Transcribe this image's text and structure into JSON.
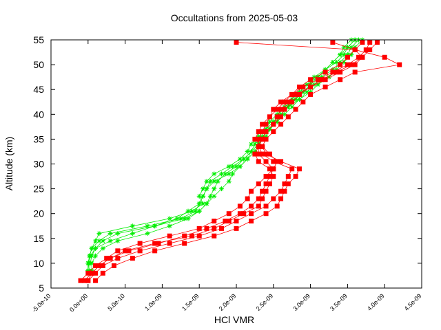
{
  "chart_data": {
    "type": "line",
    "title": "Occultations from 2025-05-03",
    "xlabel": "HCl VMR",
    "ylabel": "Altitude (km)",
    "xlim": [
      -5e-10,
      4.5e-09
    ],
    "ylim": [
      5,
      55
    ],
    "x_ticks": [
      -5e-10,
      0,
      5e-10,
      1e-09,
      1.5e-09,
      2e-09,
      2.5e-09,
      3e-09,
      3.5e-09,
      4e-09,
      4.5e-09
    ],
    "x_tick_labels": [
      "-5.0e-10",
      "0.0e+00",
      "5.0e-10",
      "1.0e-09",
      "1.5e-09",
      "2.0e-09",
      "2.5e-09",
      "3.0e-09",
      "3.5e-09",
      "4.0e-09",
      "4.5e-09"
    ],
    "y_ticks": [
      5,
      10,
      15,
      20,
      25,
      30,
      35,
      40,
      45,
      50,
      55
    ],
    "y_tick_labels": [
      "5",
      "10",
      "15",
      "20",
      "25",
      "30",
      "35",
      "40",
      "45",
      "50",
      "55"
    ],
    "grid": false,
    "legend": "none",
    "series": [
      {
        "marker": "star",
        "color": "#00ee00",
        "profiles": [
          {
            "y": [
              8.5,
              10,
              11.5,
              13,
              14.5,
              16,
              17.5,
              19,
              20.5,
              22,
              23.5,
              25,
              26.5,
              28,
              29.5,
              31,
              32.5,
              34,
              35.5,
              37,
              38.5,
              40,
              41.5,
              43,
              44.5,
              46,
              47.5,
              49,
              50.5,
              52,
              53.5,
              55
            ],
            "x": [
              0.0,
              0.0,
              2e-11,
              5e-11,
              1e-10,
              1.5e-10,
              6e-10,
              1.1e-09,
              1.4e-09,
              1.55e-09,
              1.5e-09,
              1.55e-09,
              1.6e-09,
              1.7e-09,
              1.9e-09,
              2.05e-09,
              2.15e-09,
              2.2e-09,
              2.3e-09,
              2.4e-09,
              2.5e-09,
              2.6e-09,
              2.7e-09,
              2.8e-09,
              2.9e-09,
              3e-09,
              3.1e-09,
              3.2e-09,
              3.3e-09,
              3.4e-09,
              3.5e-09,
              3.6e-09
            ]
          },
          {
            "y": [
              8.5,
              10,
              11.5,
              13,
              14.5,
              16,
              17.5,
              19,
              20.5,
              22,
              23.5,
              25,
              26.5,
              28,
              29.5,
              31,
              32.5,
              34,
              35.5,
              37,
              38.5,
              40,
              41.5,
              43,
              44.5,
              46,
              47.5,
              49,
              50.5,
              52,
              53.5,
              55
            ],
            "x": [
              2e-11,
              3e-11,
              5e-11,
              1e-10,
              2e-10,
              4e-10,
              9e-10,
              1.3e-09,
              1.5e-09,
              1.6e-09,
              1.65e-09,
              1.7e-09,
              1.75e-09,
              1.85e-09,
              2e-09,
              2.1e-09,
              2.2e-09,
              2.3e-09,
              2.35e-09,
              2.45e-09,
              2.55e-09,
              2.65e-09,
              2.75e-09,
              2.85e-09,
              3e-09,
              3.1e-09,
              3.25e-09,
              3.35e-09,
              3.45e-09,
              3.55e-09,
              3.6e-09,
              3.7e-09
            ]
          },
          {
            "y": [
              8.5,
              10,
              11.5,
              13,
              14.5,
              16,
              17.5,
              19,
              20.5,
              22,
              23.5,
              25,
              26.5,
              28,
              29.5,
              31,
              32.5,
              34,
              35.5,
              37,
              38.5,
              40,
              41.5,
              43,
              44.5,
              46,
              47.5,
              49,
              50.5,
              52,
              53.5,
              55
            ],
            "x": [
              0.0,
              1e-11,
              3e-11,
              1e-10,
              3e-10,
              6e-10,
              9e-10,
              1.2e-09,
              1.35e-09,
              1.5e-09,
              1.55e-09,
              1.6e-09,
              1.65e-09,
              1.8e-09,
              1.95e-09,
              2.1e-09,
              2.2e-09,
              2.25e-09,
              2.3e-09,
              2.4e-09,
              2.45e-09,
              2.55e-09,
              2.65e-09,
              2.8e-09,
              2.9e-09,
              3e-09,
              3.05e-09,
              3.2e-09,
              3.3e-09,
              3.4e-09,
              3.45e-09,
              3.55e-09
            ]
          },
          {
            "y": [
              8.5,
              10,
              11.5,
              13,
              14.5,
              16,
              17.5,
              19,
              20.5,
              22,
              23.5,
              25,
              26.5,
              28,
              29.5,
              31,
              32.5,
              34,
              35.5,
              37,
              38.5,
              40,
              41.5,
              43,
              44.5,
              46,
              47.5,
              49,
              50.5,
              52,
              53.5,
              55
            ],
            "x": [
              0.0,
              0.0,
              2e-11,
              5e-11,
              1.5e-10,
              3e-10,
              8e-10,
              1.25e-09,
              1.45e-09,
              1.5e-09,
              1.55e-09,
              1.6e-09,
              1.7e-09,
              1.9e-09,
              2.05e-09,
              2.15e-09,
              2.25e-09,
              2.3e-09,
              2.4e-09,
              2.45e-09,
              2.55e-09,
              2.6e-09,
              2.7e-09,
              2.75e-09,
              2.85e-09,
              2.95e-09,
              3.1e-09,
              3.2e-09,
              3.35e-09,
              3.45e-09,
              3.5e-09,
              3.6e-09
            ]
          },
          {
            "y": [
              8.5,
              10,
              11.5,
              13,
              14.5,
              16,
              17.5,
              19,
              20.5,
              22,
              23.5,
              25,
              26.5,
              28,
              29.5,
              31,
              32.5,
              34,
              35.5,
              37,
              38.5,
              40,
              41.5,
              43,
              44.5,
              46,
              47.5,
              49,
              50.5,
              52,
              53.5,
              55
            ],
            "x": [
              5e-11,
              5e-11,
              1e-10,
              2e-10,
              4e-10,
              8e-10,
              1.1e-09,
              1.35e-09,
              1.5e-09,
              1.6e-09,
              1.7e-09,
              1.8e-09,
              1.9e-09,
              1.95e-09,
              2.05e-09,
              2.15e-09,
              2.2e-09,
              2.3e-09,
              2.35e-09,
              2.45e-09,
              2.5e-09,
              2.6e-09,
              2.7e-09,
              2.85e-09,
              2.95e-09,
              3.05e-09,
              3.15e-09,
              3.3e-09,
              3.4e-09,
              3.5e-09,
              3.55e-09,
              3.65e-09
            ]
          }
        ]
      },
      {
        "marker": "square",
        "color": "#ff0000",
        "profiles": [
          {
            "y": [
              6.5,
              8,
              9.5,
              11,
              12.5,
              14,
              15.5,
              17,
              18.5,
              20,
              21.5,
              23,
              24.5,
              26,
              27.5,
              29,
              30.5,
              32,
              33.5,
              35,
              36.5,
              38,
              39.5,
              41,
              42.5,
              44,
              45.5,
              47,
              48.5,
              50,
              51.5,
              53,
              54.5
            ],
            "x": [
              -5e-11,
              5e-11,
              1.5e-10,
              3e-10,
              5e-10,
              9e-10,
              1.4e-09,
              1.7e-09,
              1.9e-09,
              2.1e-09,
              2.3e-09,
              2.35e-09,
              2.4e-09,
              2.45e-09,
              2.5e-09,
              2.45e-09,
              2.3e-09,
              2.25e-09,
              2.3e-09,
              2.35e-09,
              2.4e-09,
              2.5e-09,
              2.55e-09,
              2.6e-09,
              2.7e-09,
              2.8e-09,
              3e-09,
              3.2e-09,
              3.4e-09,
              3.6e-09,
              3.7e-09,
              3.8e-09,
              3.9e-09
            ]
          },
          {
            "y": [
              6.5,
              8,
              9.5,
              11,
              12.5,
              14,
              15.5,
              17,
              18.5,
              20,
              21.5,
              23,
              24.5,
              26,
              27.5,
              29,
              30.5,
              32,
              33.5,
              35,
              36.5,
              38,
              39.5,
              41,
              42.5,
              44,
              45.5,
              47,
              48.5,
              50,
              51.5,
              53,
              54.5
            ],
            "x": [
              0.0,
              1e-10,
              2e-10,
              4e-10,
              7e-10,
              1.1e-09,
              1.5e-09,
              1.8e-09,
              2e-09,
              2.2e-09,
              2.4e-09,
              2.5e-09,
              2.6e-09,
              2.65e-09,
              2.7e-09,
              2.75e-09,
              2.5e-09,
              2.35e-09,
              2.3e-09,
              2.3e-09,
              2.35e-09,
              2.4e-09,
              2.45e-09,
              2.55e-09,
              2.65e-09,
              2.75e-09,
              2.85e-09,
              3e-09,
              3.2e-09,
              3.4e-09,
              3.5e-09,
              3.6e-09,
              3.7e-09
            ]
          },
          {
            "y": [
              6.5,
              8,
              9.5,
              11,
              12.5,
              14,
              15.5,
              17,
              18.5,
              20,
              21.5,
              23,
              24.5,
              26,
              27.5,
              29,
              30.5,
              32,
              33.5,
              35,
              36.5,
              38,
              39.5,
              41,
              42.5,
              44,
              45.5,
              47,
              48.5,
              50,
              51.5,
              53,
              54.5
            ],
            "x": [
              -1e-10,
              0.0,
              1e-10,
              2.5e-10,
              4e-10,
              7e-10,
              1.1e-09,
              1.5e-09,
              1.7e-09,
              1.9e-09,
              2.05e-09,
              2.15e-09,
              2.2e-09,
              2.3e-09,
              2.4e-09,
              2.5e-09,
              2.55e-09,
              2.45e-09,
              2.35e-09,
              2.25e-09,
              2.3e-09,
              2.35e-09,
              2.45e-09,
              2.5e-09,
              2.6e-09,
              2.75e-09,
              2.9e-09,
              3.1e-09,
              3.3e-09,
              3.5e-09,
              3.65e-09,
              3.75e-09,
              3.8e-09
            ]
          },
          {
            "y": [
              6.5,
              8,
              9.5,
              11,
              12.5,
              14,
              15.5,
              17,
              18.5,
              20,
              21.5,
              23,
              24.5,
              26,
              27.5,
              29,
              30.5,
              32,
              33.5,
              35,
              36.5,
              38,
              39.5,
              41,
              42.5,
              44,
              45.5,
              47,
              48.5,
              50,
              51.5,
              53,
              54.5
            ],
            "x": [
              1e-10,
              2e-10,
              3.5e-10,
              6e-10,
              9e-10,
              1.3e-09,
              1.7e-09,
              2e-09,
              2.2e-09,
              2.4e-09,
              2.55e-09,
              2.6e-09,
              2.65e-09,
              2.7e-09,
              2.8e-09,
              2.85e-09,
              2.6e-09,
              2.4e-09,
              2.35e-09,
              2.4e-09,
              2.5e-09,
              2.6e-09,
              2.7e-09,
              2.8e-09,
              2.9e-09,
              3e-09,
              3.2e-09,
              3.4e-09,
              3.6e-09,
              4.2e-09,
              4e-09,
              3.6e-09,
              3.3e-09
            ]
          },
          {
            "y": [
              6.5,
              8,
              9.5,
              11,
              12.5,
              14,
              15.5,
              17,
              18.5,
              20,
              21.5,
              23,
              24.5,
              26,
              27.5,
              29,
              30.5,
              32,
              33.5,
              35,
              36.5,
              38,
              39.5,
              41,
              42.5,
              44,
              45.5,
              47,
              48.5,
              50,
              51.5,
              53,
              54.5
            ],
            "x": [
              0.0,
              5e-11,
              1.5e-10,
              3e-10,
              5.5e-10,
              9.5e-10,
              1.3e-09,
              1.6e-09,
              1.85e-09,
              2.05e-09,
              2.2e-09,
              2.3e-09,
              2.35e-09,
              2.4e-09,
              2.45e-09,
              2.5e-09,
              2.4e-09,
              2.3e-09,
              2.3e-09,
              2.35e-09,
              2.4e-09,
              2.5e-09,
              2.6e-09,
              2.65e-09,
              2.75e-09,
              2.85e-09,
              3e-09,
              3.15e-09,
              3.35e-09,
              3.55e-09,
              3.7e-09,
              3.6e-09,
              2e-09
            ]
          }
        ]
      }
    ]
  }
}
